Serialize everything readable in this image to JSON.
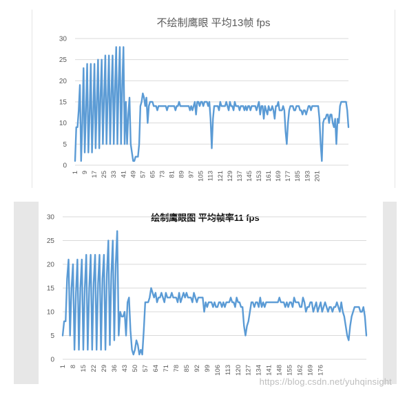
{
  "chart_data": [
    {
      "type": "line",
      "title": "不绘制鹰眼 平均13帧 fps",
      "ylim": [
        0,
        30
      ],
      "yticks": [
        0,
        5,
        10,
        15,
        20,
        25,
        30
      ],
      "xticks": [
        "1",
        "9",
        "17",
        "25",
        "33",
        "41",
        "49",
        "57",
        "65",
        "73",
        "81",
        "89",
        "97",
        "105",
        "113",
        "121",
        "129",
        "137",
        "145",
        "153",
        "161",
        "169",
        "177",
        "185",
        "193",
        "201"
      ],
      "grid": true,
      "color": "#5b9bd5",
      "series": [
        {
          "x_start": 1,
          "values": [
            1,
            9,
            9,
            13,
            19,
            1,
            10,
            23,
            3,
            13,
            24,
            3,
            12,
            24,
            3,
            12,
            24,
            4,
            15,
            25,
            4,
            16,
            25,
            5,
            16,
            26,
            5,
            16,
            26,
            5,
            17,
            26,
            5,
            18,
            28,
            5,
            19,
            28,
            5,
            19,
            28,
            5,
            15,
            5,
            12,
            16,
            5,
            3,
            1,
            1,
            2,
            2,
            2,
            5,
            14,
            15,
            17,
            16,
            14,
            16,
            10,
            14,
            15,
            15,
            15,
            14,
            14,
            14,
            13,
            14,
            14,
            14,
            14,
            14,
            14,
            14,
            13,
            14,
            14,
            14,
            14,
            14,
            14,
            13,
            14,
            14,
            15,
            14,
            14,
            14,
            14,
            14,
            14,
            14,
            14,
            13,
            14,
            13,
            14,
            15,
            12,
            15,
            15,
            14,
            15,
            15,
            14,
            15,
            15,
            15,
            14,
            15,
            11,
            4,
            11,
            14,
            14,
            14,
            14,
            13,
            15,
            14,
            14,
            14,
            14,
            15,
            14,
            13,
            15,
            14,
            14,
            13,
            15,
            14,
            14,
            14,
            13,
            14,
            14,
            14,
            13,
            14,
            13,
            14,
            14,
            13,
            14,
            14,
            14,
            14,
            13,
            14,
            15,
            12,
            14,
            14,
            11,
            14,
            13,
            12,
            14,
            13,
            13,
            14,
            13,
            11,
            14,
            14,
            15,
            13,
            13,
            13,
            14,
            13,
            8,
            5,
            10,
            13,
            14,
            14,
            14,
            13,
            13,
            14,
            14,
            14,
            13,
            13,
            12,
            13,
            13,
            12,
            13,
            14,
            14,
            13,
            14,
            14,
            14,
            14,
            14,
            14,
            11,
            5,
            1,
            10,
            11,
            11,
            12,
            12,
            10,
            12,
            12,
            10,
            9,
            11,
            5,
            11,
            10,
            14,
            15,
            15,
            15,
            15,
            15,
            13,
            9
          ]
        }
      ]
    },
    {
      "type": "line",
      "title": "绘制鹰眼图 平均帧率11 fps",
      "ylim": [
        0,
        30
      ],
      "yticks": [
        0,
        5,
        10,
        15,
        20,
        25,
        30
      ],
      "xticks": [
        "1",
        "8",
        "15",
        "22",
        "29",
        "36",
        "43",
        "50",
        "57",
        "64",
        "71",
        "78",
        "85",
        "92",
        "99",
        "106",
        "113",
        "120",
        "127",
        "134",
        "141",
        "148",
        "155",
        "162",
        "169",
        "176"
      ],
      "grid": true,
      "color": "#5b9bd5",
      "series": [
        {
          "x_start": 1,
          "values": [
            5,
            8,
            8,
            17,
            21,
            5,
            15,
            20,
            2,
            14,
            21,
            2,
            15,
            21,
            2,
            15,
            22,
            2,
            15,
            22,
            2,
            16,
            22,
            2,
            16,
            22,
            2,
            17,
            22,
            2,
            18,
            25,
            3,
            18,
            25,
            4,
            20,
            27,
            5,
            10,
            9,
            9,
            10,
            5,
            12,
            13,
            6,
            2,
            1,
            2,
            4,
            3,
            1,
            2,
            1,
            6,
            12,
            12,
            12,
            13,
            15,
            14,
            13,
            14,
            12,
            13,
            13,
            14,
            13,
            12,
            14,
            13,
            13,
            13,
            14,
            13,
            13,
            13,
            12,
            14,
            12,
            13,
            14,
            13,
            14,
            13,
            13,
            13,
            12,
            14,
            13,
            12,
            13,
            13,
            13,
            13,
            10,
            12,
            11,
            12,
            12,
            12,
            11,
            12,
            11,
            11,
            12,
            12,
            11,
            12,
            11,
            12,
            12,
            12,
            13,
            12,
            12,
            11,
            13,
            12,
            12,
            11,
            11,
            7,
            5,
            7,
            8,
            10,
            12,
            12,
            11,
            12,
            12,
            11,
            13,
            11,
            12,
            11,
            12,
            12,
            12,
            12,
            12,
            12,
            12,
            12,
            12,
            13,
            12,
            12,
            12,
            11,
            12,
            11,
            12,
            12,
            11,
            13,
            12,
            12,
            12,
            11,
            11,
            13,
            12,
            10,
            11,
            11,
            12,
            12,
            10,
            11,
            12,
            10,
            11,
            12,
            10,
            11,
            12,
            11,
            10,
            11,
            11,
            10,
            11,
            11,
            12,
            11,
            10,
            12,
            10,
            9,
            7,
            5,
            4,
            7,
            9,
            10,
            11,
            11,
            11,
            11,
            10,
            10,
            11,
            9,
            5
          ]
        }
      ]
    }
  ],
  "watermark": "https://blog.csdn.net/yuhqinsight"
}
